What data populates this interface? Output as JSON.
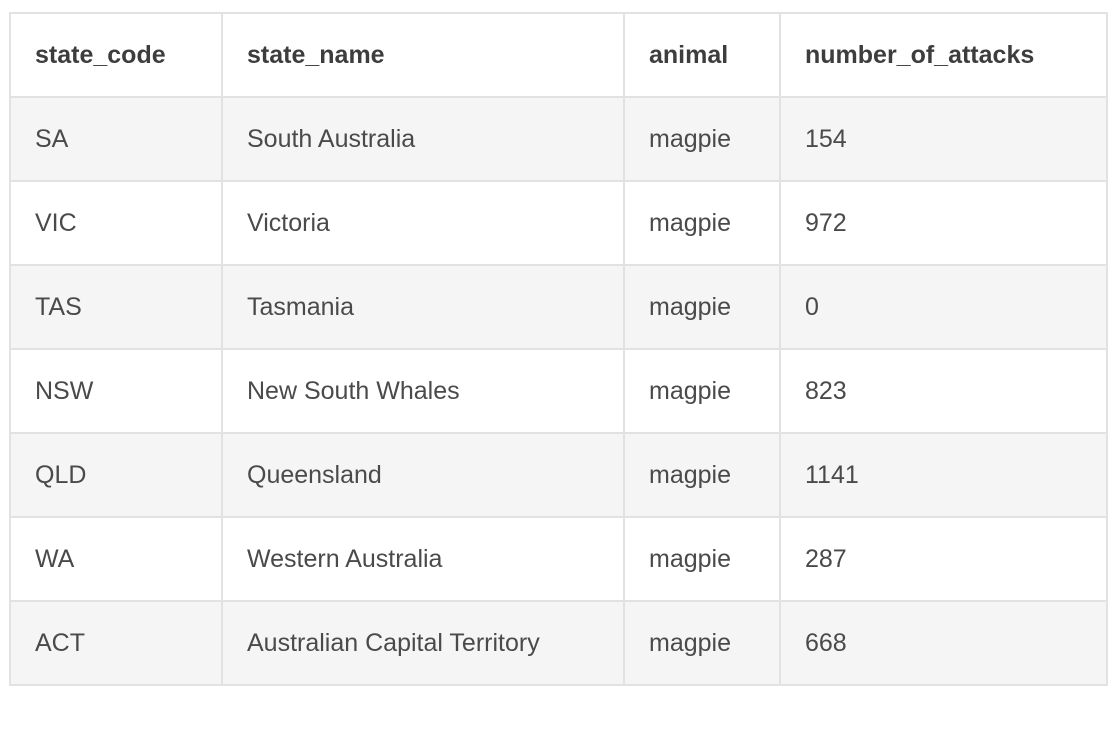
{
  "table": {
    "columns": [
      "state_code",
      "state_name",
      "animal",
      "number_of_attacks"
    ],
    "rows": [
      [
        "SA",
        "South Australia",
        "magpie",
        "154"
      ],
      [
        "VIC",
        "Victoria",
        "magpie",
        "972"
      ],
      [
        "TAS",
        "Tasmania",
        "magpie",
        "0"
      ],
      [
        "NSW",
        "New South Whales",
        "magpie",
        "823"
      ],
      [
        "QLD",
        "Queensland",
        "magpie",
        "1141"
      ],
      [
        "WA",
        "Western Australia",
        "magpie",
        "287"
      ],
      [
        "ACT",
        "Australian Capital Territory",
        "magpie",
        "668"
      ]
    ]
  }
}
